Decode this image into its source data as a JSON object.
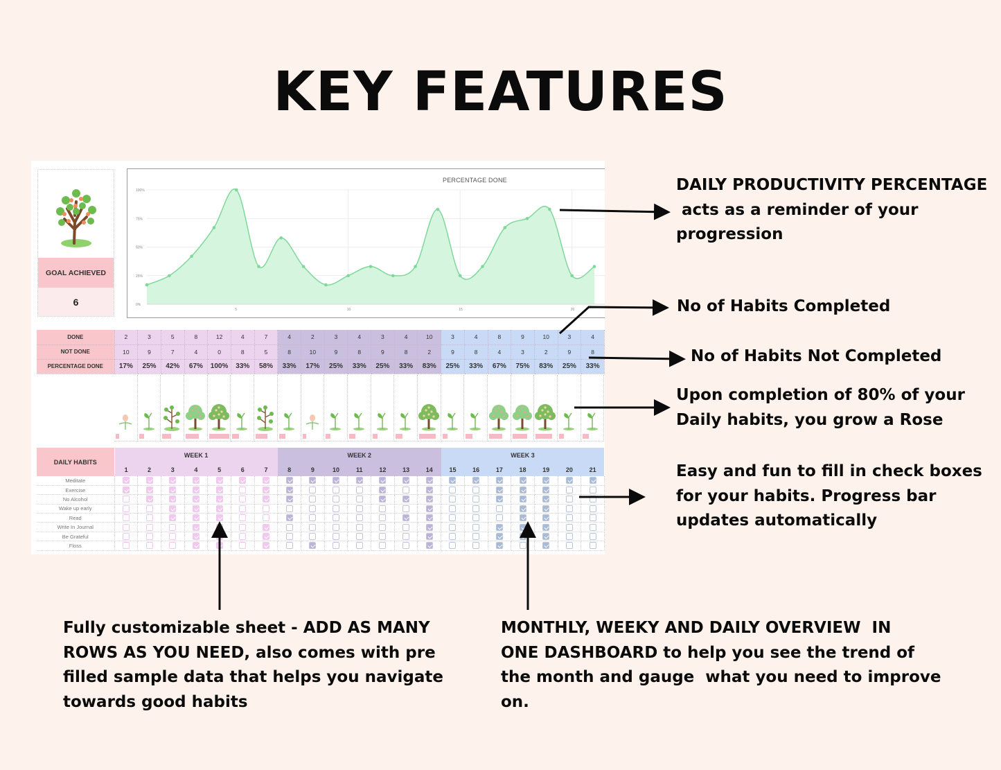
{
  "title": "KEY FEATURES",
  "goal_card": {
    "icon": "tree-icon",
    "label": "GOAL ACHIEVED",
    "value": "6"
  },
  "chart_data": {
    "type": "area",
    "title": "PERCENTAGE DONE",
    "x": [
      1,
      2,
      3,
      4,
      5,
      6,
      7,
      8,
      9,
      10,
      11,
      12,
      13,
      14,
      15,
      16,
      17,
      18,
      19,
      20,
      21
    ],
    "values": [
      17,
      25,
      42,
      67,
      100,
      33,
      58,
      33,
      17,
      25,
      33,
      25,
      33,
      83,
      25,
      33,
      67,
      75,
      83,
      25,
      33
    ],
    "xticks": [
      "5",
      "10",
      "15",
      "20"
    ],
    "yticks": [
      "0%",
      "25%",
      "50%",
      "75%",
      "100%"
    ],
    "ylim": [
      0,
      100
    ],
    "grid": true,
    "color": "#7fd89a",
    "fill": "#d6f5df"
  },
  "stats": {
    "labels": {
      "done": "DONE",
      "not_done": "NOT DONE",
      "pct": "PERCENTAGE DONE"
    },
    "done": [
      "2",
      "3",
      "5",
      "8",
      "12",
      "4",
      "7",
      "4",
      "2",
      "3",
      "4",
      "3",
      "4",
      "10",
      "3",
      "4",
      "8",
      "9",
      "10",
      "3",
      "4"
    ],
    "not_done": [
      "10",
      "9",
      "7",
      "4",
      "0",
      "8",
      "5",
      "8",
      "10",
      "9",
      "8",
      "9",
      "8",
      "2",
      "9",
      "8",
      "4",
      "3",
      "2",
      "9",
      "8"
    ],
    "pct": [
      "17%",
      "25%",
      "42%",
      "67%",
      "100%",
      "33%",
      "58%",
      "33%",
      "17%",
      "25%",
      "33%",
      "25%",
      "33%",
      "83%",
      "25%",
      "33%",
      "67%",
      "75%",
      "83%",
      "25%",
      "33%"
    ]
  },
  "plants": [
    "flower-bud",
    "sprout",
    "sapling",
    "tree",
    "tree-full",
    "sprout",
    "sapling",
    "sprout",
    "flower-bud",
    "sprout",
    "sprout",
    "sprout",
    "sprout",
    "tree-full",
    "sprout",
    "sprout",
    "tree",
    "tree",
    "tree-full",
    "sprout",
    "sprout"
  ],
  "habits": {
    "header": "DAILY HABITS",
    "weeks": [
      "WEEK 1",
      "WEEK 2",
      "WEEK 3"
    ],
    "days": [
      "1",
      "2",
      "3",
      "4",
      "5",
      "6",
      "7",
      "8",
      "9",
      "10",
      "11",
      "12",
      "13",
      "14",
      "15",
      "16",
      "17",
      "18",
      "19",
      "20",
      "21"
    ],
    "rows": [
      {
        "name": "Meditate",
        "checks": [
          1,
          1,
          1,
          1,
          1,
          1,
          1,
          1,
          1,
          1,
          1,
          1,
          1,
          1,
          1,
          1,
          1,
          1,
          1,
          1,
          1
        ]
      },
      {
        "name": "Exercise",
        "checks": [
          1,
          1,
          1,
          1,
          1,
          0,
          1,
          1,
          0,
          0,
          0,
          1,
          0,
          1,
          0,
          0,
          1,
          1,
          1,
          0,
          0
        ]
      },
      {
        "name": "No Alcohol",
        "checks": [
          0,
          1,
          1,
          1,
          1,
          0,
          1,
          1,
          0,
          0,
          0,
          1,
          1,
          1,
          0,
          0,
          1,
          1,
          1,
          0,
          0
        ]
      },
      {
        "name": "Wake up early",
        "checks": [
          0,
          0,
          1,
          1,
          1,
          0,
          0,
          0,
          0,
          0,
          0,
          0,
          0,
          1,
          0,
          0,
          0,
          1,
          1,
          0,
          0
        ]
      },
      {
        "name": "Read",
        "checks": [
          0,
          0,
          1,
          1,
          1,
          0,
          0,
          1,
          0,
          0,
          0,
          0,
          1,
          1,
          0,
          0,
          0,
          1,
          1,
          0,
          0
        ]
      },
      {
        "name": "Write In Journal",
        "checks": [
          0,
          0,
          0,
          1,
          1,
          0,
          1,
          0,
          0,
          0,
          0,
          0,
          0,
          1,
          0,
          0,
          1,
          1,
          1,
          0,
          0
        ]
      },
      {
        "name": "Be Grateful",
        "checks": [
          0,
          0,
          0,
          1,
          1,
          0,
          1,
          0,
          0,
          0,
          0,
          0,
          0,
          1,
          0,
          0,
          1,
          1,
          1,
          0,
          0
        ]
      },
      {
        "name": "Floss",
        "checks": [
          0,
          0,
          0,
          1,
          1,
          0,
          1,
          0,
          1,
          0,
          0,
          0,
          0,
          1,
          0,
          0,
          1,
          0,
          1,
          0,
          0
        ]
      }
    ]
  },
  "callouts": {
    "productivity": [
      "DAILY PRODUCTIVITY PERCENTAGE",
      " acts as a reminder of your",
      "progression"
    ],
    "completed": "No of Habits Completed",
    "not_completed": "No of Habits Not Completed",
    "rose": [
      "Upon completion of 80% of your",
      "Daily habits, you grow a Rose"
    ],
    "checkboxes": [
      "Easy and fun to fill in check boxes",
      "for your habits. Progress bar",
      "updates automatically"
    ],
    "customizable": [
      "Fully customizable sheet - ADD AS MANY",
      "ROWS AS YOU NEED, also comes with pre",
      "filled sample data that helps you navigate",
      "towards good habits"
    ],
    "overview": [
      "MONTHLY, WEEKY AND DAILY OVERVIEW  IN",
      "ONE DASHBOARD to help you see the trend of",
      "the month and gauge  what you need to improve",
      "on."
    ]
  }
}
